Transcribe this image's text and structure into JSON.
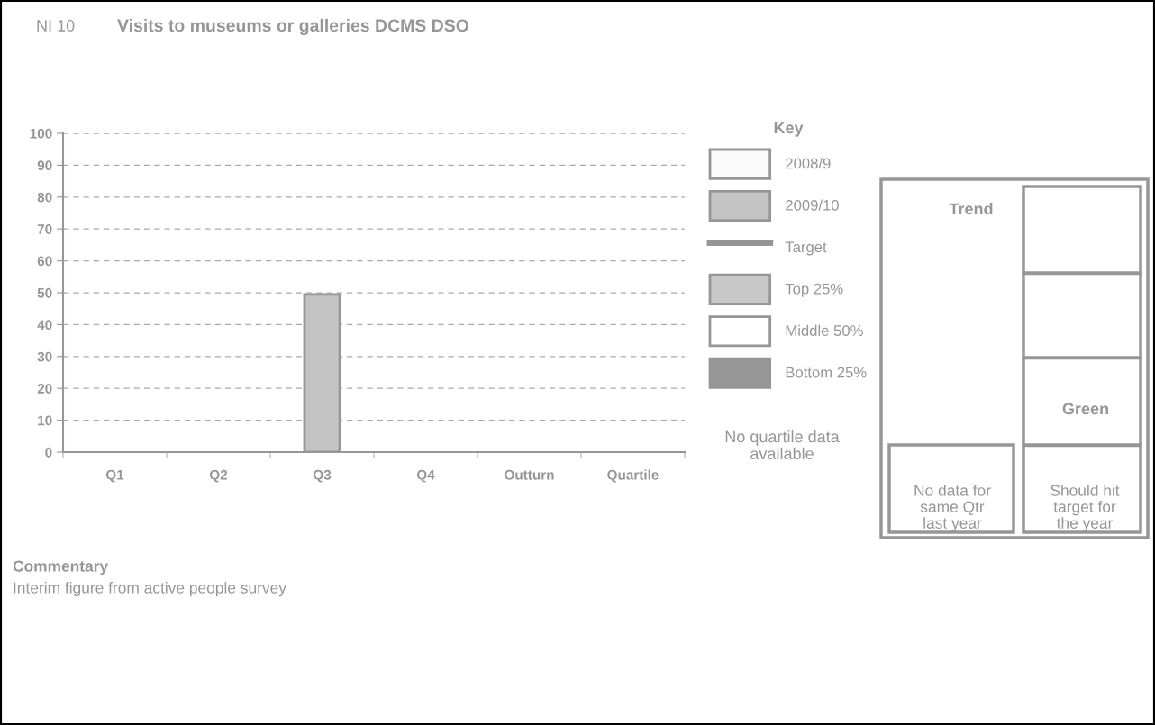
{
  "chart_data": {
    "type": "bar",
    "title": "Visits to museums or galleries DCMS DSO",
    "subtitle": "NI 10",
    "legend_title": "Key",
    "categories": [
      "Q1",
      "Q2",
      "Q3",
      "Q4",
      "Outturn",
      "Quartile"
    ],
    "series": [
      {
        "name": "2008/9",
        "color": "#fafafa",
        "values": [
          null,
          null,
          null,
          null,
          null,
          null
        ]
      },
      {
        "name": "2009/10",
        "color": "#c4c4c4",
        "values": [
          null,
          null,
          49.5,
          null,
          null,
          null
        ]
      },
      {
        "name": "Target",
        "type": "line",
        "color": "#969696",
        "values": [
          null,
          null,
          null,
          null,
          null,
          null
        ]
      },
      {
        "name": "Top 25%",
        "color": "#c8c8c8",
        "values": [
          null,
          null,
          null,
          null,
          null,
          null
        ]
      },
      {
        "name": "Middle 50%",
        "color": "#ffffff",
        "values": [
          null,
          null,
          null,
          null,
          null,
          null
        ]
      },
      {
        "name": "Bottom 25%",
        "color": "#969696",
        "values": [
          null,
          null,
          null,
          null,
          null,
          null
        ]
      }
    ],
    "ylim": [
      0,
      100
    ],
    "yticks": [
      0,
      10,
      20,
      30,
      40,
      50,
      60,
      70,
      80,
      90,
      100
    ],
    "grid": "y",
    "legend": "right",
    "annotations": [
      "No quartile data available",
      "Trend",
      "Green",
      "No data for same Qtr last year",
      "Should hit target for the year",
      "Commentary",
      "Interim figure from active people survey"
    ]
  }
}
